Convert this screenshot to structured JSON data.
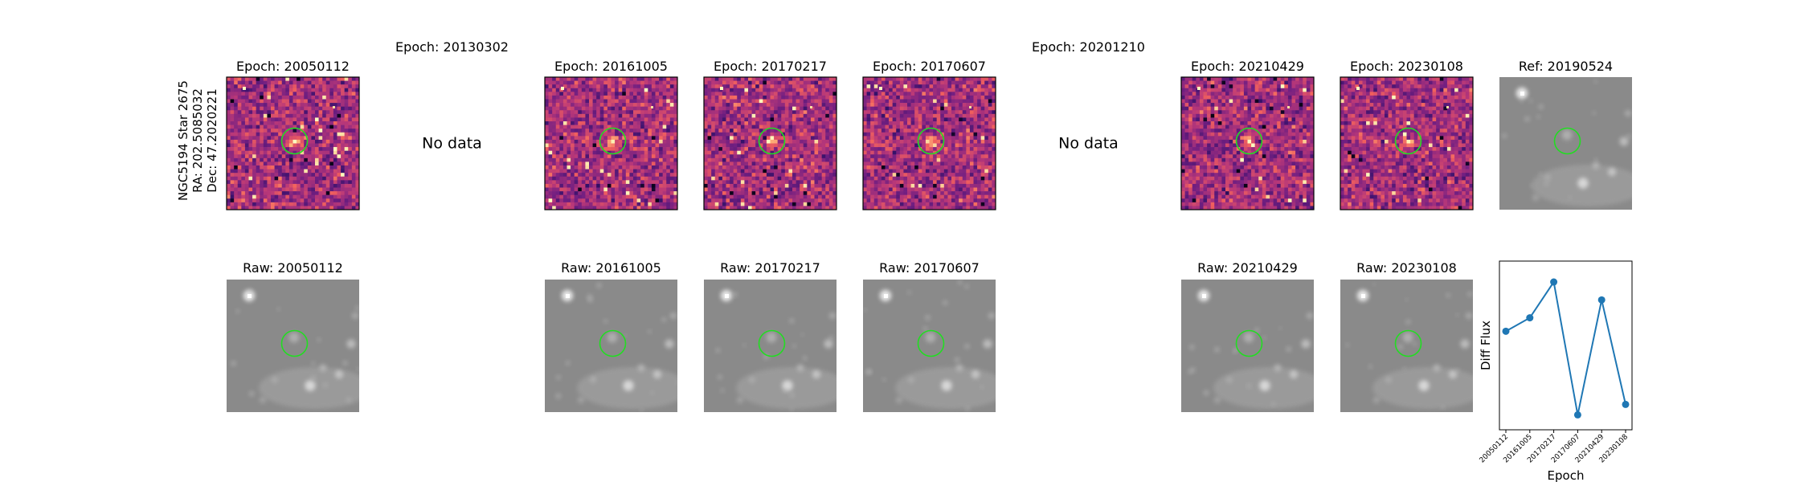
{
  "target": {
    "object": "NGC5194 Star 2675",
    "ra": "RA: 202.5085032",
    "dec": "Dec: 47.2020221"
  },
  "top_row": [
    {
      "title": "Epoch: 20050112",
      "kind": "diff"
    },
    {
      "title": "Epoch: 20130302",
      "kind": "nodata",
      "message": "No data"
    },
    {
      "title": "Epoch: 20161005",
      "kind": "diff"
    },
    {
      "title": "Epoch: 20170217",
      "kind": "diff"
    },
    {
      "title": "Epoch: 20170607",
      "kind": "diff"
    },
    {
      "title": "Epoch: 20201210",
      "kind": "nodata",
      "message": "No data"
    },
    {
      "title": "Epoch: 20210429",
      "kind": "diff"
    },
    {
      "title": "Epoch: 20230108",
      "kind": "diff"
    },
    {
      "title": "Ref: 20190524",
      "kind": "raw"
    }
  ],
  "bottom_row": [
    {
      "title": "Raw: 20050112",
      "kind": "raw"
    },
    {
      "title": "",
      "kind": "empty"
    },
    {
      "title": "Raw: 20161005",
      "kind": "raw"
    },
    {
      "title": "Raw: 20170217",
      "kind": "raw"
    },
    {
      "title": "Raw: 20170607",
      "kind": "raw"
    },
    {
      "title": "",
      "kind": "empty"
    },
    {
      "title": "Raw: 20210429",
      "kind": "raw"
    },
    {
      "title": "Raw: 20230108",
      "kind": "raw"
    },
    {
      "title": "",
      "kind": "lightcurve"
    }
  ],
  "colors": {
    "aperture": "#22dd22",
    "line": "#1f77b4"
  },
  "chart_data": {
    "type": "line",
    "title": "",
    "xlabel": "Epoch",
    "ylabel": "Diff Flux",
    "x": [
      "20050112",
      "20161005",
      "20170217",
      "20170607",
      "20210429",
      "20230108"
    ],
    "series": [
      {
        "values": [
          0.58,
          0.67,
          0.91,
          0.02,
          0.79,
          0.09
        ]
      }
    ],
    "ylim": [
      -0.08,
      1.05
    ],
    "y_ticks_shown": false,
    "markers": true
  }
}
